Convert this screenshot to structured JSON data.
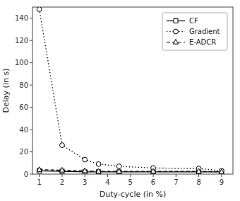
{
  "chart_data": {
    "type": "line",
    "x": [
      1,
      2,
      3,
      3.6,
      4.5,
      6,
      8,
      9
    ],
    "series": [
      {
        "name": "CF",
        "color": "#000000",
        "marker": "square",
        "line_style": "solid",
        "values": [
          3,
          2.5,
          2,
          2,
          2,
          2,
          2,
          2
        ]
      },
      {
        "name": "Gradient",
        "color": "#000000",
        "marker": "circle",
        "line_style": "dotted",
        "values": [
          148,
          26,
          13,
          9,
          7,
          5.5,
          5,
          3
        ]
      },
      {
        "name": "E-ADCR",
        "color": "#000000",
        "marker": "triangle",
        "line_style": "dashed",
        "values": [
          4,
          3.5,
          3,
          2.5,
          2.5,
          2.5,
          2.5,
          2
        ]
      }
    ],
    "xlabel": "Duty-cycle (in %)",
    "ylabel": "Delay (in s)",
    "xlim": [
      0.7,
      9.5
    ],
    "ylim": [
      0,
      150
    ],
    "xticks": [
      1,
      2,
      3,
      4,
      5,
      6,
      7,
      8,
      9
    ],
    "yticks": [
      0,
      20,
      40,
      60,
      80,
      100,
      120,
      140
    ],
    "legend": "upper right"
  }
}
